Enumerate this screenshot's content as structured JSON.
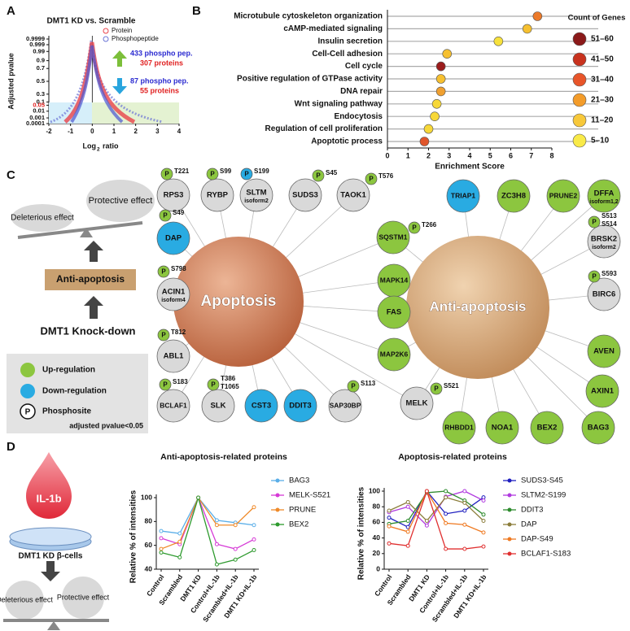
{
  "panels": {
    "a": "A",
    "b": "B",
    "c": "C",
    "d": "D"
  },
  "volcano": {
    "title": "DMT1 KD vs. Scramble",
    "legend": [
      {
        "name": "Protein",
        "color": "#e8424a"
      },
      {
        "name": "Phosphopeptide",
        "color": "#6b74d6"
      }
    ],
    "up": {
      "peptides": "433 phospho pep.",
      "proteins": "307 proteins"
    },
    "down": {
      "peptides": "87 phospho pep.",
      "proteins": "55 proteins"
    },
    "ylabel": "Adjusted pvalue",
    "xlabel": "Log",
    "xlabel_sub": "2",
    "xlabel_end": "ratio",
    "xlim": [
      -2,
      4
    ],
    "xticks": [
      -2,
      -1,
      0,
      1,
      2,
      3,
      4
    ],
    "ylim": [
      0.0001,
      0.9999
    ],
    "yticks": [
      0.9999,
      0.999,
      0.99,
      0.9,
      0.7,
      0.5,
      0.3,
      0.1,
      0.05,
      0.01,
      0.001,
      0.0001
    ],
    "threshold": 0.05
  },
  "enrichment": {
    "type": "dot",
    "categories": [
      "Microtubule cytoskeleton organization",
      "cAMP-mediated signaling",
      "Insulin secretion",
      "Cell-Cell adhesion",
      "Cell cycle",
      "Positive regulation of GTPase activity",
      "DNA repair",
      "Wnt signaling pathway",
      "Endocytosis",
      "Regulation of cell proliferation",
      "Apoptotic process"
    ],
    "values": [
      7.3,
      6.8,
      5.4,
      2.9,
      2.6,
      2.6,
      2.6,
      2.4,
      2.3,
      2.0,
      1.8
    ],
    "colors": [
      "#ec7a2a",
      "#f6c030",
      "#f7e13c",
      "#f6c030",
      "#9b1c1c",
      "#f6c030",
      "#f0a030",
      "#f7d838",
      "#f7d838",
      "#f7d838",
      "#e0552a"
    ],
    "xlim": [
      0,
      8
    ],
    "xticks": [
      0,
      1,
      2,
      3,
      4,
      5,
      6,
      7,
      8
    ],
    "xlabel": "Enrichment Score",
    "legend": {
      "title": "Count of Genes",
      "labels": [
        "51–60",
        "41–50",
        "31–40",
        "21–30",
        "11–20",
        "5–10"
      ],
      "colors": [
        "#8b1a1a",
        "#c8321e",
        "#e8552a",
        "#f39c2a",
        "#f7c83a",
        "#f9ea48"
      ]
    }
  },
  "schematic_c": {
    "protective": "Protective effect",
    "deleterious": "Deleterious effect",
    "box": "Anti-apoptosis",
    "cause": "DMT1 Knock-down"
  },
  "network": {
    "hubs": [
      "Apoptosis",
      "Anti-apoptosis"
    ],
    "site_symbol": "P",
    "colors": {
      "up": "#8cc63f",
      "down": "#29abe2",
      "none": "#d9d9d9"
    },
    "legend": {
      "up": "Up-regulation",
      "down": "Down-regulation",
      "site": "Phosphosite",
      "note": "adjusted pvalue<0.05"
    },
    "nodes": [
      {
        "label": "RPS3",
        "reg": "none",
        "sites": [
          "T221"
        ],
        "hubs": [
          0
        ]
      },
      {
        "label": "RYBP",
        "reg": "none",
        "sites": [
          "S99"
        ],
        "hubs": [
          0
        ]
      },
      {
        "label": "SLTM",
        "sub": "isoform2",
        "reg": "none",
        "sites": [
          "S199"
        ],
        "site_reg": "down",
        "hubs": [
          0
        ]
      },
      {
        "label": "SUDS3",
        "reg": "none",
        "sites": [
          "S45"
        ],
        "hubs": [
          0
        ]
      },
      {
        "label": "TAOK1",
        "reg": "none",
        "sites": [
          "T576"
        ],
        "hubs": [
          0
        ]
      },
      {
        "label": "SQSTM1",
        "reg": "up",
        "sites": [
          "T266"
        ],
        "hubs": [
          0,
          1
        ]
      },
      {
        "label": "MAPK14",
        "reg": "up",
        "sites": [],
        "hubs": [
          0,
          1
        ]
      },
      {
        "label": "FAS",
        "reg": "up",
        "sites": [],
        "hubs": [
          0,
          1
        ]
      },
      {
        "label": "MAP2K6",
        "reg": "up",
        "sites": [],
        "hubs": [
          0,
          1
        ]
      },
      {
        "label": "MELK",
        "reg": "none",
        "sites": [
          "S521"
        ],
        "hubs": [
          0,
          1
        ]
      },
      {
        "label": "SAP30BP",
        "reg": "none",
        "sites": [
          "S113"
        ],
        "hubs": [
          0
        ]
      },
      {
        "label": "DDIT3",
        "reg": "down",
        "sites": [],
        "hubs": [
          0
        ]
      },
      {
        "label": "CST3",
        "reg": "down",
        "sites": [],
        "hubs": [
          0
        ]
      },
      {
        "label": "SLK",
        "reg": "none",
        "sites": [
          "T386",
          "T1065"
        ],
        "hubs": [
          0
        ]
      },
      {
        "label": "BCLAF1",
        "reg": "none",
        "sites": [
          "S183"
        ],
        "hubs": [
          0
        ]
      },
      {
        "label": "ABL1",
        "reg": "none",
        "sites": [
          "T812"
        ],
        "hubs": [
          0
        ]
      },
      {
        "label": "ACIN1",
        "sub": "isoform4",
        "reg": "none",
        "sites": [
          "S798"
        ],
        "hubs": [
          0
        ]
      },
      {
        "label": "DAP",
        "reg": "down",
        "sites": [
          "S49"
        ],
        "hubs": [
          0
        ]
      },
      {
        "label": "TRIAP1",
        "reg": "down",
        "sites": [],
        "hubs": [
          1
        ]
      },
      {
        "label": "ZC3H8",
        "reg": "up",
        "sites": [],
        "hubs": [
          1
        ]
      },
      {
        "label": "PRUNE2",
        "reg": "up",
        "sites": [],
        "hubs": [
          1
        ]
      },
      {
        "label": "DFFA",
        "sub": "isoform1,2",
        "reg": "up",
        "sites": [],
        "hubs": [
          1
        ]
      },
      {
        "label": "BRSK2",
        "sub": "isoform2",
        "reg": "none",
        "sites": [
          "S513",
          "S514"
        ],
        "hubs": [
          1
        ]
      },
      {
        "label": "BIRC6",
        "reg": "none",
        "sites": [
          "S593"
        ],
        "hubs": [
          1
        ]
      },
      {
        "label": "AVEN",
        "reg": "up",
        "sites": [],
        "hubs": [
          1
        ]
      },
      {
        "label": "AXIN1",
        "reg": "up",
        "sites": [],
        "hubs": [
          1
        ]
      },
      {
        "label": "BAG3",
        "reg": "up",
        "sites": [],
        "hubs": [
          1
        ]
      },
      {
        "label": "BEX2",
        "reg": "up",
        "sites": [],
        "hubs": [
          1
        ]
      },
      {
        "label": "NOA1",
        "reg": "up",
        "sites": [],
        "hubs": [
          1
        ]
      },
      {
        "label": "RHBDD1",
        "reg": "up",
        "sites": [],
        "hubs": [
          1
        ]
      }
    ]
  },
  "schematic_d": {
    "stimulus": "IL-1b",
    "cells": "DMT1 KD β-cells",
    "deleterious": "Deleterious effect",
    "protective": "Protective effect"
  },
  "chart_data": [
    {
      "type": "line",
      "title": "Anti-apoptosis-related proteins",
      "ylabel": "Relative % of intensities",
      "categories": [
        "Control",
        "Scrambled",
        "DMT1 KD",
        "Control+IL-1b",
        "Scrambled+IL-1b",
        "DMT1 KD+IL-1b"
      ],
      "ylim": [
        40,
        100
      ],
      "yticks": [
        40,
        60,
        80,
        100
      ],
      "series": [
        {
          "name": "BAG3",
          "color": "#5aaee8",
          "values": [
            72,
            70,
            100,
            81,
            79,
            77
          ]
        },
        {
          "name": "MELK-S521",
          "color": "#d63ad6",
          "values": [
            66,
            61,
            100,
            61,
            57,
            65
          ]
        },
        {
          "name": "PRUNE",
          "color": "#ef8a2a",
          "values": [
            57,
            63,
            100,
            77,
            77,
            92
          ]
        },
        {
          "name": "BEX2",
          "color": "#2e9a2e",
          "values": [
            54,
            50,
            100,
            44,
            48,
            56
          ]
        }
      ]
    },
    {
      "type": "line",
      "title": "Apoptosis-related proteins",
      "ylabel": "Relative % of intensities",
      "categories": [
        "Control",
        "Scrambled",
        "DMT1 KD",
        "Control+IL-1b",
        "Scrambled+IL-1b",
        "DMT1 KD+IL-1b"
      ],
      "ylim": [
        0,
        100
      ],
      "yticks": [
        0,
        20,
        40,
        60,
        80,
        100
      ],
      "series": [
        {
          "name": "SUDS3-S45",
          "color": "#1f1fbf",
          "values": [
            66,
            54,
            100,
            71,
            75,
            92
          ]
        },
        {
          "name": "SLTM2-S199",
          "color": "#b03adf",
          "values": [
            73,
            80,
            56,
            93,
            100,
            88
          ]
        },
        {
          "name": "DDIT3",
          "color": "#2e8b2e",
          "values": [
            58,
            62,
            98,
            100,
            88,
            70
          ]
        },
        {
          "name": "DAP",
          "color": "#8b7d3a",
          "values": [
            75,
            86,
            62,
            92,
            85,
            62
          ]
        },
        {
          "name": "DAP-S49",
          "color": "#ef7a22",
          "values": [
            55,
            48,
            100,
            59,
            57,
            47
          ]
        },
        {
          "name": "BCLAF1-S183",
          "color": "#e03030",
          "values": [
            33,
            30,
            100,
            26,
            26,
            29
          ]
        }
      ]
    }
  ]
}
